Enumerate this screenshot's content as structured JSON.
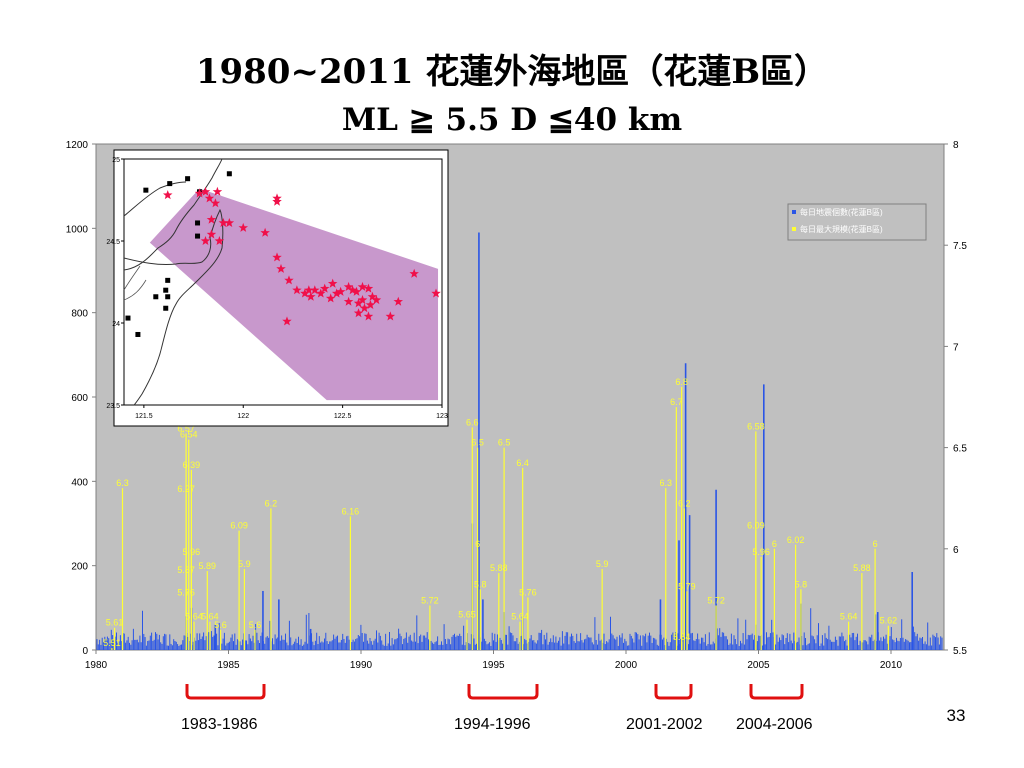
{
  "slide": {
    "title_line1": "1980~2011 花蓮外海地區（花蓮B區）",
    "title_line2": "ML ≧ 5.5  D ≦40 km",
    "page_number": "33",
    "periods": [
      "1983-1986",
      "1994-1996",
      "2001-2002",
      "2004-2006"
    ]
  },
  "colors": {
    "plot_bg": "#c0c0c0",
    "daily_count": "#2a55e6",
    "max_magnitude": "#ffff33",
    "label": "#ffff33",
    "bracket": "#e01010",
    "shade": "#c898cc",
    "star": "#f0104a"
  },
  "chart_data": {
    "type": "bar",
    "x": {
      "ticks": [
        "1980",
        "1985",
        "1990",
        "1995",
        "2000",
        "2005",
        "2010"
      ],
      "range": [
        1980,
        2012
      ]
    },
    "y_left": {
      "ticks": [
        "0",
        "200",
        "400",
        "600",
        "800",
        "1000",
        "1200"
      ],
      "range": [
        0,
        1200
      ]
    },
    "y_right": {
      "ticks": [
        "5.5",
        "6",
        "6.5",
        "7",
        "7.5",
        "8"
      ],
      "range": [
        5.5,
        8
      ]
    },
    "legend": {
      "position": "top-right",
      "entries": [
        "每日地震個數(花蓮B區)",
        "每日最大規模(花蓮B區)"
      ]
    },
    "series": [
      {
        "name": "每日地震個數(花蓮B區)",
        "axis": "left",
        "spikes": [
          {
            "x": 1983.4,
            "y": 80
          },
          {
            "x": 1983.6,
            "y": 100
          },
          {
            "x": 1984.5,
            "y": 60
          },
          {
            "x": 1986.3,
            "y": 140
          },
          {
            "x": 1986.9,
            "y": 120
          },
          {
            "x": 1988.1,
            "y": 50
          },
          {
            "x": 1994.2,
            "y": 300
          },
          {
            "x": 1994.45,
            "y": 990
          },
          {
            "x": 1994.6,
            "y": 120
          },
          {
            "x": 1995.4,
            "y": 90
          },
          {
            "x": 1996.1,
            "y": 80
          },
          {
            "x": 2001.3,
            "y": 120
          },
          {
            "x": 2002.0,
            "y": 260
          },
          {
            "x": 2002.25,
            "y": 680
          },
          {
            "x": 2002.4,
            "y": 320
          },
          {
            "x": 2003.4,
            "y": 380
          },
          {
            "x": 2004.9,
            "y": 60
          },
          {
            "x": 2005.2,
            "y": 630
          },
          {
            "x": 2006.6,
            "y": 110
          },
          {
            "x": 2009.5,
            "y": 90
          },
          {
            "x": 2010.8,
            "y": 185
          }
        ]
      },
      {
        "name": "每日最大規模(花蓮B區)",
        "axis": "right",
        "events": [
          {
            "x": 1980.6,
            "y": 5.51,
            "label": "5.51"
          },
          {
            "x": 1980.7,
            "y": 5.61,
            "label": "5.61"
          },
          {
            "x": 1981.0,
            "y": 6.3,
            "label": "6.3"
          },
          {
            "x": 1983.4,
            "y": 6.57,
            "label": "6.57"
          },
          {
            "x": 1983.5,
            "y": 6.54,
            "label": "6.54"
          },
          {
            "x": 1983.6,
            "y": 6.39,
            "label": "6.39"
          },
          {
            "x": 1983.4,
            "y": 6.27,
            "label": "6.27"
          },
          {
            "x": 1983.6,
            "y": 5.96,
            "label": "5.96"
          },
          {
            "x": 1983.4,
            "y": 5.87,
            "label": "5.87"
          },
          {
            "x": 1984.2,
            "y": 5.89,
            "label": "5.89"
          },
          {
            "x": 1983.4,
            "y": 5.76,
            "label": "5.76"
          },
          {
            "x": 1983.7,
            "y": 5.64,
            "label": "5.64"
          },
          {
            "x": 1984.3,
            "y": 5.64,
            "label": "5.64"
          },
          {
            "x": 1984.7,
            "y": 5.6,
            "label": "5.6"
          },
          {
            "x": 1985.4,
            "y": 6.09,
            "label": "6.09"
          },
          {
            "x": 1985.6,
            "y": 5.9,
            "label": "5.9"
          },
          {
            "x": 1986.0,
            "y": 5.6,
            "label": "5.6"
          },
          {
            "x": 1986.6,
            "y": 6.2,
            "label": "6.2"
          },
          {
            "x": 1989.6,
            "y": 6.16,
            "label": "6.16"
          },
          {
            "x": 1992.6,
            "y": 5.72,
            "label": "5.72"
          },
          {
            "x": 1994.0,
            "y": 5.65,
            "label": "5.65"
          },
          {
            "x": 1994.2,
            "y": 6.6,
            "label": "6.6"
          },
          {
            "x": 1994.4,
            "y": 6.5,
            "label": "6.5"
          },
          {
            "x": 1994.4,
            "y": 6.0,
            "label": "6"
          },
          {
            "x": 1994.5,
            "y": 5.8,
            "label": "5.8"
          },
          {
            "x": 1995.2,
            "y": 5.88,
            "label": "5.88"
          },
          {
            "x": 1995.4,
            "y": 6.5,
            "label": "6.5"
          },
          {
            "x": 1996.1,
            "y": 6.4,
            "label": "6.4"
          },
          {
            "x": 1996.3,
            "y": 5.76,
            "label": "5.76"
          },
          {
            "x": 1996.0,
            "y": 5.64,
            "label": "5.64"
          },
          {
            "x": 1999.1,
            "y": 5.9,
            "label": "5.9"
          },
          {
            "x": 2001.5,
            "y": 6.3,
            "label": "6.3"
          },
          {
            "x": 2001.9,
            "y": 6.7,
            "label": "6.7"
          },
          {
            "x": 2002.1,
            "y": 6.8,
            "label": "6.8"
          },
          {
            "x": 2002.2,
            "y": 6.2,
            "label": "6.2"
          },
          {
            "x": 2002.3,
            "y": 5.79,
            "label": "5.79"
          },
          {
            "x": 2002.1,
            "y": 5.54,
            "label": "5.54"
          },
          {
            "x": 2003.4,
            "y": 5.72,
            "label": "5.72"
          },
          {
            "x": 2004.9,
            "y": 6.58,
            "label": "6.58"
          },
          {
            "x": 2004.9,
            "y": 6.09,
            "label": "6.09"
          },
          {
            "x": 2005.1,
            "y": 5.96,
            "label": "5.96"
          },
          {
            "x": 2005.6,
            "y": 6.0,
            "label": "6"
          },
          {
            "x": 2006.4,
            "y": 6.02,
            "label": "6.02"
          },
          {
            "x": 2006.6,
            "y": 5.8,
            "label": "5.8"
          },
          {
            "x": 2008.4,
            "y": 5.64,
            "label": "5.64"
          },
          {
            "x": 2008.9,
            "y": 5.88,
            "label": "5.88"
          },
          {
            "x": 2009.4,
            "y": 6.0,
            "label": "6"
          },
          {
            "x": 2009.9,
            "y": 5.62,
            "label": "5.62"
          }
        ]
      }
    ],
    "inset_map": {
      "x_ticks": [
        "121.5",
        "122",
        "122.5",
        "123"
      ],
      "y_ticks": [
        "25",
        "24.5",
        "24",
        "23.5"
      ],
      "x_range": [
        121.4,
        123.0
      ],
      "y_range": [
        23.5,
        25.0
      ],
      "polygon": [
        [
          121.53,
          24.49
        ],
        [
          121.78,
          24.82
        ],
        [
          122.98,
          24.33
        ],
        [
          122.98,
          23.53
        ],
        [
          122.42,
          23.53
        ]
      ],
      "stations": [
        {
          "lon": 121.72,
          "lat": 24.88
        },
        {
          "lon": 121.63,
          "lat": 24.85
        },
        {
          "lon": 121.93,
          "lat": 24.91
        },
        {
          "lon": 121.51,
          "lat": 24.81
        },
        {
          "lon": 121.78,
          "lat": 24.8
        },
        {
          "lon": 121.77,
          "lat": 24.61
        },
        {
          "lon": 121.77,
          "lat": 24.53
        },
        {
          "lon": 121.62,
          "lat": 24.26
        },
        {
          "lon": 121.61,
          "lat": 24.2
        },
        {
          "lon": 121.56,
          "lat": 24.16
        },
        {
          "lon": 121.62,
          "lat": 24.16
        },
        {
          "lon": 121.61,
          "lat": 24.09
        },
        {
          "lon": 121.42,
          "lat": 24.03
        },
        {
          "lon": 121.47,
          "lat": 23.93
        }
      ],
      "stars": [
        {
          "lon": 121.62,
          "lat": 24.78
        },
        {
          "lon": 121.78,
          "lat": 24.79
        },
        {
          "lon": 121.81,
          "lat": 24.8
        },
        {
          "lon": 121.87,
          "lat": 24.8
        },
        {
          "lon": 121.83,
          "lat": 24.76
        },
        {
          "lon": 121.86,
          "lat": 24.73
        },
        {
          "lon": 121.84,
          "lat": 24.63
        },
        {
          "lon": 121.9,
          "lat": 24.61
        },
        {
          "lon": 121.93,
          "lat": 24.61
        },
        {
          "lon": 122.0,
          "lat": 24.58
        },
        {
          "lon": 121.84,
          "lat": 24.54
        },
        {
          "lon": 121.88,
          "lat": 24.5
        },
        {
          "lon": 121.81,
          "lat": 24.5
        },
        {
          "lon": 122.11,
          "lat": 24.55
        },
        {
          "lon": 122.17,
          "lat": 24.74
        },
        {
          "lon": 122.17,
          "lat": 24.76
        },
        {
          "lon": 122.17,
          "lat": 24.4
        },
        {
          "lon": 122.19,
          "lat": 24.33
        },
        {
          "lon": 122.23,
          "lat": 24.26
        },
        {
          "lon": 122.22,
          "lat": 24.01
        },
        {
          "lon": 122.27,
          "lat": 24.2
        },
        {
          "lon": 122.31,
          "lat": 24.18
        },
        {
          "lon": 122.33,
          "lat": 24.2
        },
        {
          "lon": 122.34,
          "lat": 24.16
        },
        {
          "lon": 122.36,
          "lat": 24.2
        },
        {
          "lon": 122.39,
          "lat": 24.18
        },
        {
          "lon": 122.41,
          "lat": 24.21
        },
        {
          "lon": 122.44,
          "lat": 24.15
        },
        {
          "lon": 122.47,
          "lat": 24.18
        },
        {
          "lon": 122.49,
          "lat": 24.19
        },
        {
          "lon": 122.53,
          "lat": 24.22
        },
        {
          "lon": 122.55,
          "lat": 24.2
        },
        {
          "lon": 122.57,
          "lat": 24.19
        },
        {
          "lon": 122.6,
          "lat": 24.22
        },
        {
          "lon": 122.63,
          "lat": 24.21
        },
        {
          "lon": 122.65,
          "lat": 24.16
        },
        {
          "lon": 122.6,
          "lat": 24.14
        },
        {
          "lon": 122.58,
          "lat": 24.12
        },
        {
          "lon": 122.61,
          "lat": 24.09
        },
        {
          "lon": 122.64,
          "lat": 24.11
        },
        {
          "lon": 122.67,
          "lat": 24.14
        },
        {
          "lon": 122.58,
          "lat": 24.06
        },
        {
          "lon": 122.63,
          "lat": 24.04
        },
        {
          "lon": 122.74,
          "lat": 24.04
        },
        {
          "lon": 122.78,
          "lat": 24.13
        },
        {
          "lon": 122.86,
          "lat": 24.3
        },
        {
          "lon": 122.97,
          "lat": 24.18
        },
        {
          "lon": 122.53,
          "lat": 24.13
        },
        {
          "lon": 122.45,
          "lat": 24.24
        }
      ]
    }
  }
}
